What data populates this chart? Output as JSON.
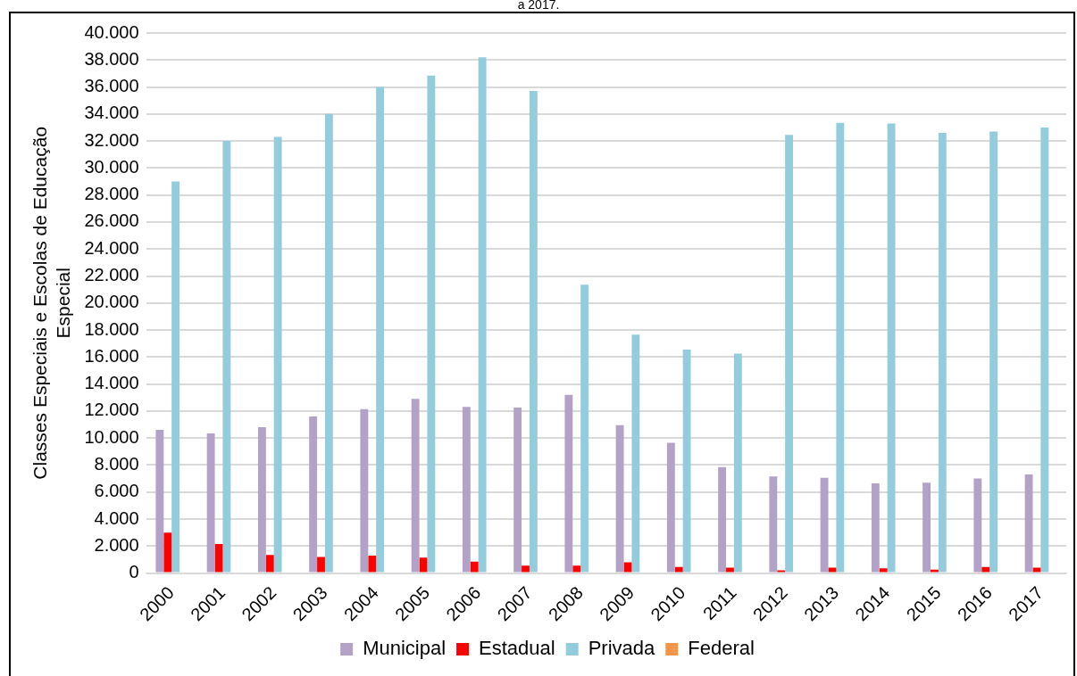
{
  "chart_data": {
    "type": "bar",
    "title": "a 2017.",
    "ylabel": "Classes Especiais e Escolas de Educação Especial",
    "categories": [
      "2000",
      "2001",
      "2002",
      "2003",
      "2004",
      "2005",
      "2006",
      "2007",
      "2008",
      "2009",
      "2010",
      "2011",
      "2012",
      "2013",
      "2014",
      "2015",
      "2016",
      "2017"
    ],
    "series": [
      {
        "name": "Municipal",
        "color": "#b3a2c7",
        "values": [
          10600,
          10350,
          10800,
          11600,
          12150,
          12900,
          12300,
          12250,
          13200,
          10950,
          9650,
          7850,
          7150,
          7050,
          6650,
          6700,
          7000,
          7300
        ]
      },
      {
        "name": "Estadual",
        "color": "#ff0000",
        "values": [
          3000,
          2150,
          1350,
          1200,
          1300,
          1150,
          850,
          550,
          550,
          800,
          450,
          400,
          200,
          400,
          350,
          250,
          450,
          400
        ]
      },
      {
        "name": "Privada",
        "color": "#93cddd",
        "values": [
          29000,
          32000,
          32300,
          34000,
          36000,
          36850,
          38200,
          35700,
          21350,
          17650,
          16550,
          16250,
          32450,
          33350,
          33300,
          32600,
          32700,
          33000
        ]
      },
      {
        "name": "Federal",
        "color": "#f79646",
        "values": [
          null,
          null,
          null,
          null,
          null,
          null,
          null,
          null,
          null,
          null,
          null,
          null,
          null,
          null,
          null,
          null,
          null,
          null
        ]
      }
    ],
    "ylim": [
      0,
      40000
    ],
    "yticks": [
      {
        "value": 0,
        "label": "0"
      },
      {
        "value": 2000,
        "label": "2.000"
      },
      {
        "value": 4000,
        "label": "4.000"
      },
      {
        "value": 6000,
        "label": "6.000"
      },
      {
        "value": 8000,
        "label": "8.000"
      },
      {
        "value": 10000,
        "label": "10.000"
      },
      {
        "value": 12000,
        "label": "12.000"
      },
      {
        "value": 14000,
        "label": "14.000"
      },
      {
        "value": 16000,
        "label": "16.000"
      },
      {
        "value": 18000,
        "label": "18.000"
      },
      {
        "value": 20000,
        "label": "20.000"
      },
      {
        "value": 22000,
        "label": "22.000"
      },
      {
        "value": 24000,
        "label": "24.000"
      },
      {
        "value": 26000,
        "label": "26.000"
      },
      {
        "value": 28000,
        "label": "28.000"
      },
      {
        "value": 30000,
        "label": "30.000"
      },
      {
        "value": 32000,
        "label": "32.000"
      },
      {
        "value": 34000,
        "label": "34.000"
      },
      {
        "value": 36000,
        "label": "36.000"
      },
      {
        "value": 38000,
        "label": "38.000"
      },
      {
        "value": 40000,
        "label": "40.000"
      }
    ],
    "grid": "y",
    "legend": "bottom"
  }
}
